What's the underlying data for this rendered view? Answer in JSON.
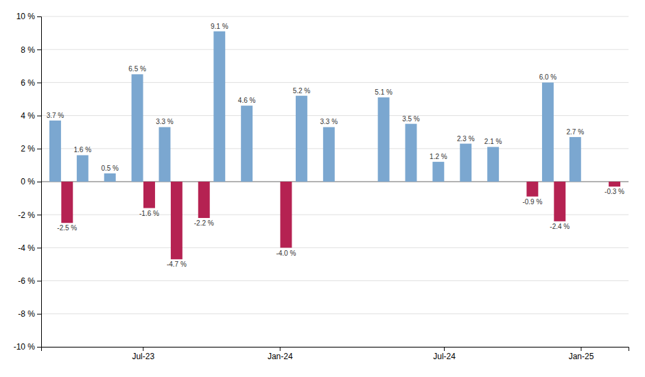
{
  "chart_data": {
    "type": "bar",
    "categories": [
      null,
      null,
      null,
      "Jul-23",
      null,
      null,
      null,
      null,
      "Jan-24",
      null,
      null,
      null,
      null,
      null,
      "Jul-24",
      null,
      null,
      null,
      null,
      "Jan-25",
      null
    ],
    "series": [
      {
        "color": "#7BA7D0",
        "values": [
          3.7,
          1.6,
          0.5,
          6.5,
          3.3,
          0.0,
          9.1,
          4.6,
          0.0,
          5.2,
          3.3,
          0.0,
          5.1,
          3.5,
          1.2,
          2.3,
          2.1,
          0.0,
          6.0,
          2.7,
          0.0
        ],
        "value_labels": [
          "3.7 %",
          "1.6 %",
          "0.5 %",
          "6.5 %",
          "3.3 %",
          null,
          "9.1 %",
          "4.6 %",
          null,
          "5.2 %",
          "3.3 %",
          null,
          "5.1 %",
          "3.5 %",
          "1.2 %",
          "2.3 %",
          "2.1 %",
          null,
          "6.0 %",
          "2.7 %",
          null
        ]
      },
      {
        "color": "#B52252",
        "values": [
          -2.5,
          0.0,
          0.0,
          -1.6,
          -4.7,
          -2.2,
          0.0,
          0.0,
          -4.0,
          0.0,
          0.0,
          0.0,
          0.0,
          0.0,
          0.0,
          0.0,
          0.0,
          -0.9,
          -2.4,
          0.0,
          -0.3
        ],
        "value_labels": [
          "-2.5 %",
          null,
          null,
          "-1.6 %",
          "-4.7 %",
          "-2.2 %",
          null,
          null,
          "-4.0 %",
          null,
          null,
          null,
          null,
          null,
          null,
          null,
          null,
          "-0.9 %",
          "-2.4 %",
          null,
          "-0.3 %"
        ]
      }
    ],
    "ylim": [
      -10,
      10
    ],
    "yticks": [
      {
        "value": -10,
        "label": "-10 %"
      },
      {
        "value": -8,
        "label": "-8 %"
      },
      {
        "value": -6,
        "label": "-6 %"
      },
      {
        "value": -4,
        "label": "-4 %"
      },
      {
        "value": -2,
        "label": "-2 %"
      },
      {
        "value": 0,
        "label": "0 %"
      },
      {
        "value": 2,
        "label": "2 %"
      },
      {
        "value": 4,
        "label": "4 %"
      },
      {
        "value": 6,
        "label": "6 %"
      },
      {
        "value": 8,
        "label": "8 %"
      },
      {
        "value": 10,
        "label": "10 %"
      }
    ],
    "grid": true,
    "data_labels": true
  }
}
